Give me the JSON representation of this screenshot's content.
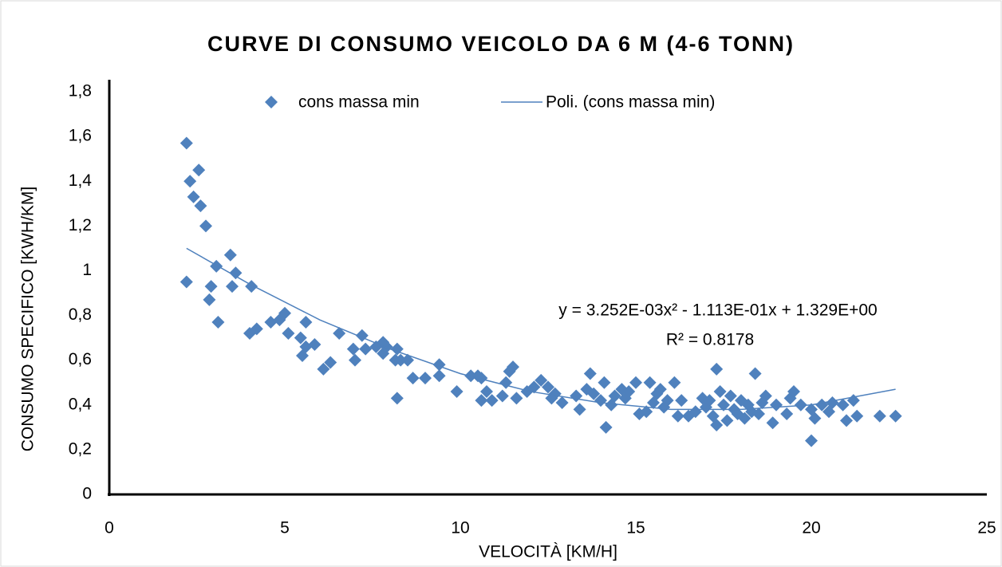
{
  "chart_data": {
    "type": "scatter",
    "title": "CURVE DI CONSUMO VEICOLO DA 6 M (4-6 TONN)",
    "x_label": "VELOCITÀ [KM/H]",
    "y_label": "CONSUMO SPECIFICO [KWH/KM]",
    "xlim": [
      0,
      25
    ],
    "xticks": [
      0,
      5,
      10,
      15,
      20,
      25
    ],
    "ylim": [
      0,
      1.8
    ],
    "yticks": [
      0,
      {
        "value": 0.2,
        "label": "0,2"
      },
      {
        "value": 0.4,
        "label": "0,4"
      },
      {
        "value": 0.6,
        "label": "0,6"
      },
      {
        "value": 0.8,
        "label": "0,8"
      },
      1,
      {
        "value": 1.2,
        "label": "1,2"
      },
      {
        "value": 1.4,
        "label": "1,4"
      },
      {
        "value": 1.6,
        "label": "1,6"
      },
      {
        "value": 1.8,
        "label": "1,8"
      }
    ],
    "grid": false,
    "legend": "top",
    "series": [
      {
        "name": "cons massa min",
        "color": "#4f81bd",
        "marker": "diamond",
        "x": [
          2.2,
          2.3,
          2.4,
          2.55,
          2.6,
          2.75,
          2.2,
          2.9,
          2.85,
          3.05,
          3.1,
          3.45,
          3.5,
          3.6,
          4.05,
          4.0,
          4.2,
          4.6,
          4.85,
          5.0,
          5.1,
          5.45,
          5.5,
          5.6,
          5.6,
          5.85,
          6.1,
          6.3,
          6.55,
          6.95,
          7.0,
          7.2,
          7.3,
          7.6,
          7.8,
          7.8,
          7.9,
          8.15,
          8.2,
          8.2,
          8.3,
          8.5,
          8.65,
          9.0,
          9.4,
          9.4,
          9.9,
          10.3,
          10.5,
          10.6,
          10.6,
          10.75,
          10.9,
          11.2,
          11.3,
          11.4,
          11.5,
          11.6,
          11.9,
          12.1,
          12.3,
          12.5,
          12.6,
          12.7,
          12.9,
          13.3,
          13.4,
          13.6,
          13.7,
          13.8,
          14.0,
          14.1,
          14.15,
          14.3,
          14.4,
          14.6,
          14.7,
          14.8,
          15.0,
          15.1,
          15.3,
          15.4,
          15.5,
          15.6,
          15.7,
          15.8,
          15.9,
          16.1,
          16.2,
          16.3,
          16.5,
          16.7,
          16.9,
          17.0,
          17.1,
          17.2,
          17.3,
          17.3,
          17.4,
          17.5,
          17.6,
          17.7,
          17.8,
          17.9,
          18.0,
          18.1,
          18.2,
          18.3,
          18.4,
          18.5,
          18.6,
          18.7,
          18.9,
          19.0,
          19.3,
          19.4,
          19.5,
          19.7,
          20.0,
          20.0,
          20.1,
          20.3,
          20.5,
          20.6,
          20.9,
          21.0,
          21.2,
          21.3,
          21.95,
          22.4
        ],
        "values": [
          1.57,
          1.4,
          1.33,
          1.45,
          1.29,
          1.2,
          0.95,
          0.93,
          0.87,
          1.02,
          0.77,
          1.07,
          0.93,
          0.99,
          0.93,
          0.72,
          0.74,
          0.77,
          0.78,
          0.81,
          0.72,
          0.7,
          0.62,
          0.66,
          0.77,
          0.67,
          0.56,
          0.59,
          0.72,
          0.65,
          0.6,
          0.71,
          0.65,
          0.66,
          0.68,
          0.63,
          0.66,
          0.6,
          0.65,
          0.43,
          0.6,
          0.6,
          0.52,
          0.52,
          0.58,
          0.53,
          0.46,
          0.53,
          0.53,
          0.52,
          0.42,
          0.46,
          0.42,
          0.44,
          0.5,
          0.55,
          0.57,
          0.43,
          0.46,
          0.48,
          0.51,
          0.48,
          0.43,
          0.45,
          0.41,
          0.44,
          0.38,
          0.47,
          0.54,
          0.45,
          0.42,
          0.5,
          0.3,
          0.4,
          0.44,
          0.47,
          0.43,
          0.46,
          0.5,
          0.36,
          0.37,
          0.5,
          0.41,
          0.45,
          0.47,
          0.39,
          0.42,
          0.5,
          0.35,
          0.42,
          0.35,
          0.37,
          0.43,
          0.39,
          0.42,
          0.35,
          0.56,
          0.31,
          0.46,
          0.4,
          0.33,
          0.44,
          0.38,
          0.36,
          0.42,
          0.34,
          0.4,
          0.37,
          0.54,
          0.36,
          0.41,
          0.44,
          0.32,
          0.4,
          0.36,
          0.43,
          0.46,
          0.4,
          0.24,
          0.38,
          0.34,
          0.4,
          0.37,
          0.41,
          0.4,
          0.33,
          0.42,
          0.35,
          0.35,
          0.35
        ]
      },
      {
        "name": "Poli. (cons massa min)",
        "color": "#4f81bd",
        "marker": "line",
        "x": [
          2.2,
          4,
          6,
          8,
          10,
          12,
          14,
          16,
          18,
          20,
          22.4
        ],
        "values": [
          1.1,
          0.94,
          0.78,
          0.65,
          0.54,
          0.46,
          0.41,
          0.38,
          0.38,
          0.4,
          0.47
        ]
      }
    ],
    "annotations": [
      "y = 3.252E-03x² - 1.113E-01x + 1.329E+00",
      "R² = 0.8178"
    ]
  }
}
